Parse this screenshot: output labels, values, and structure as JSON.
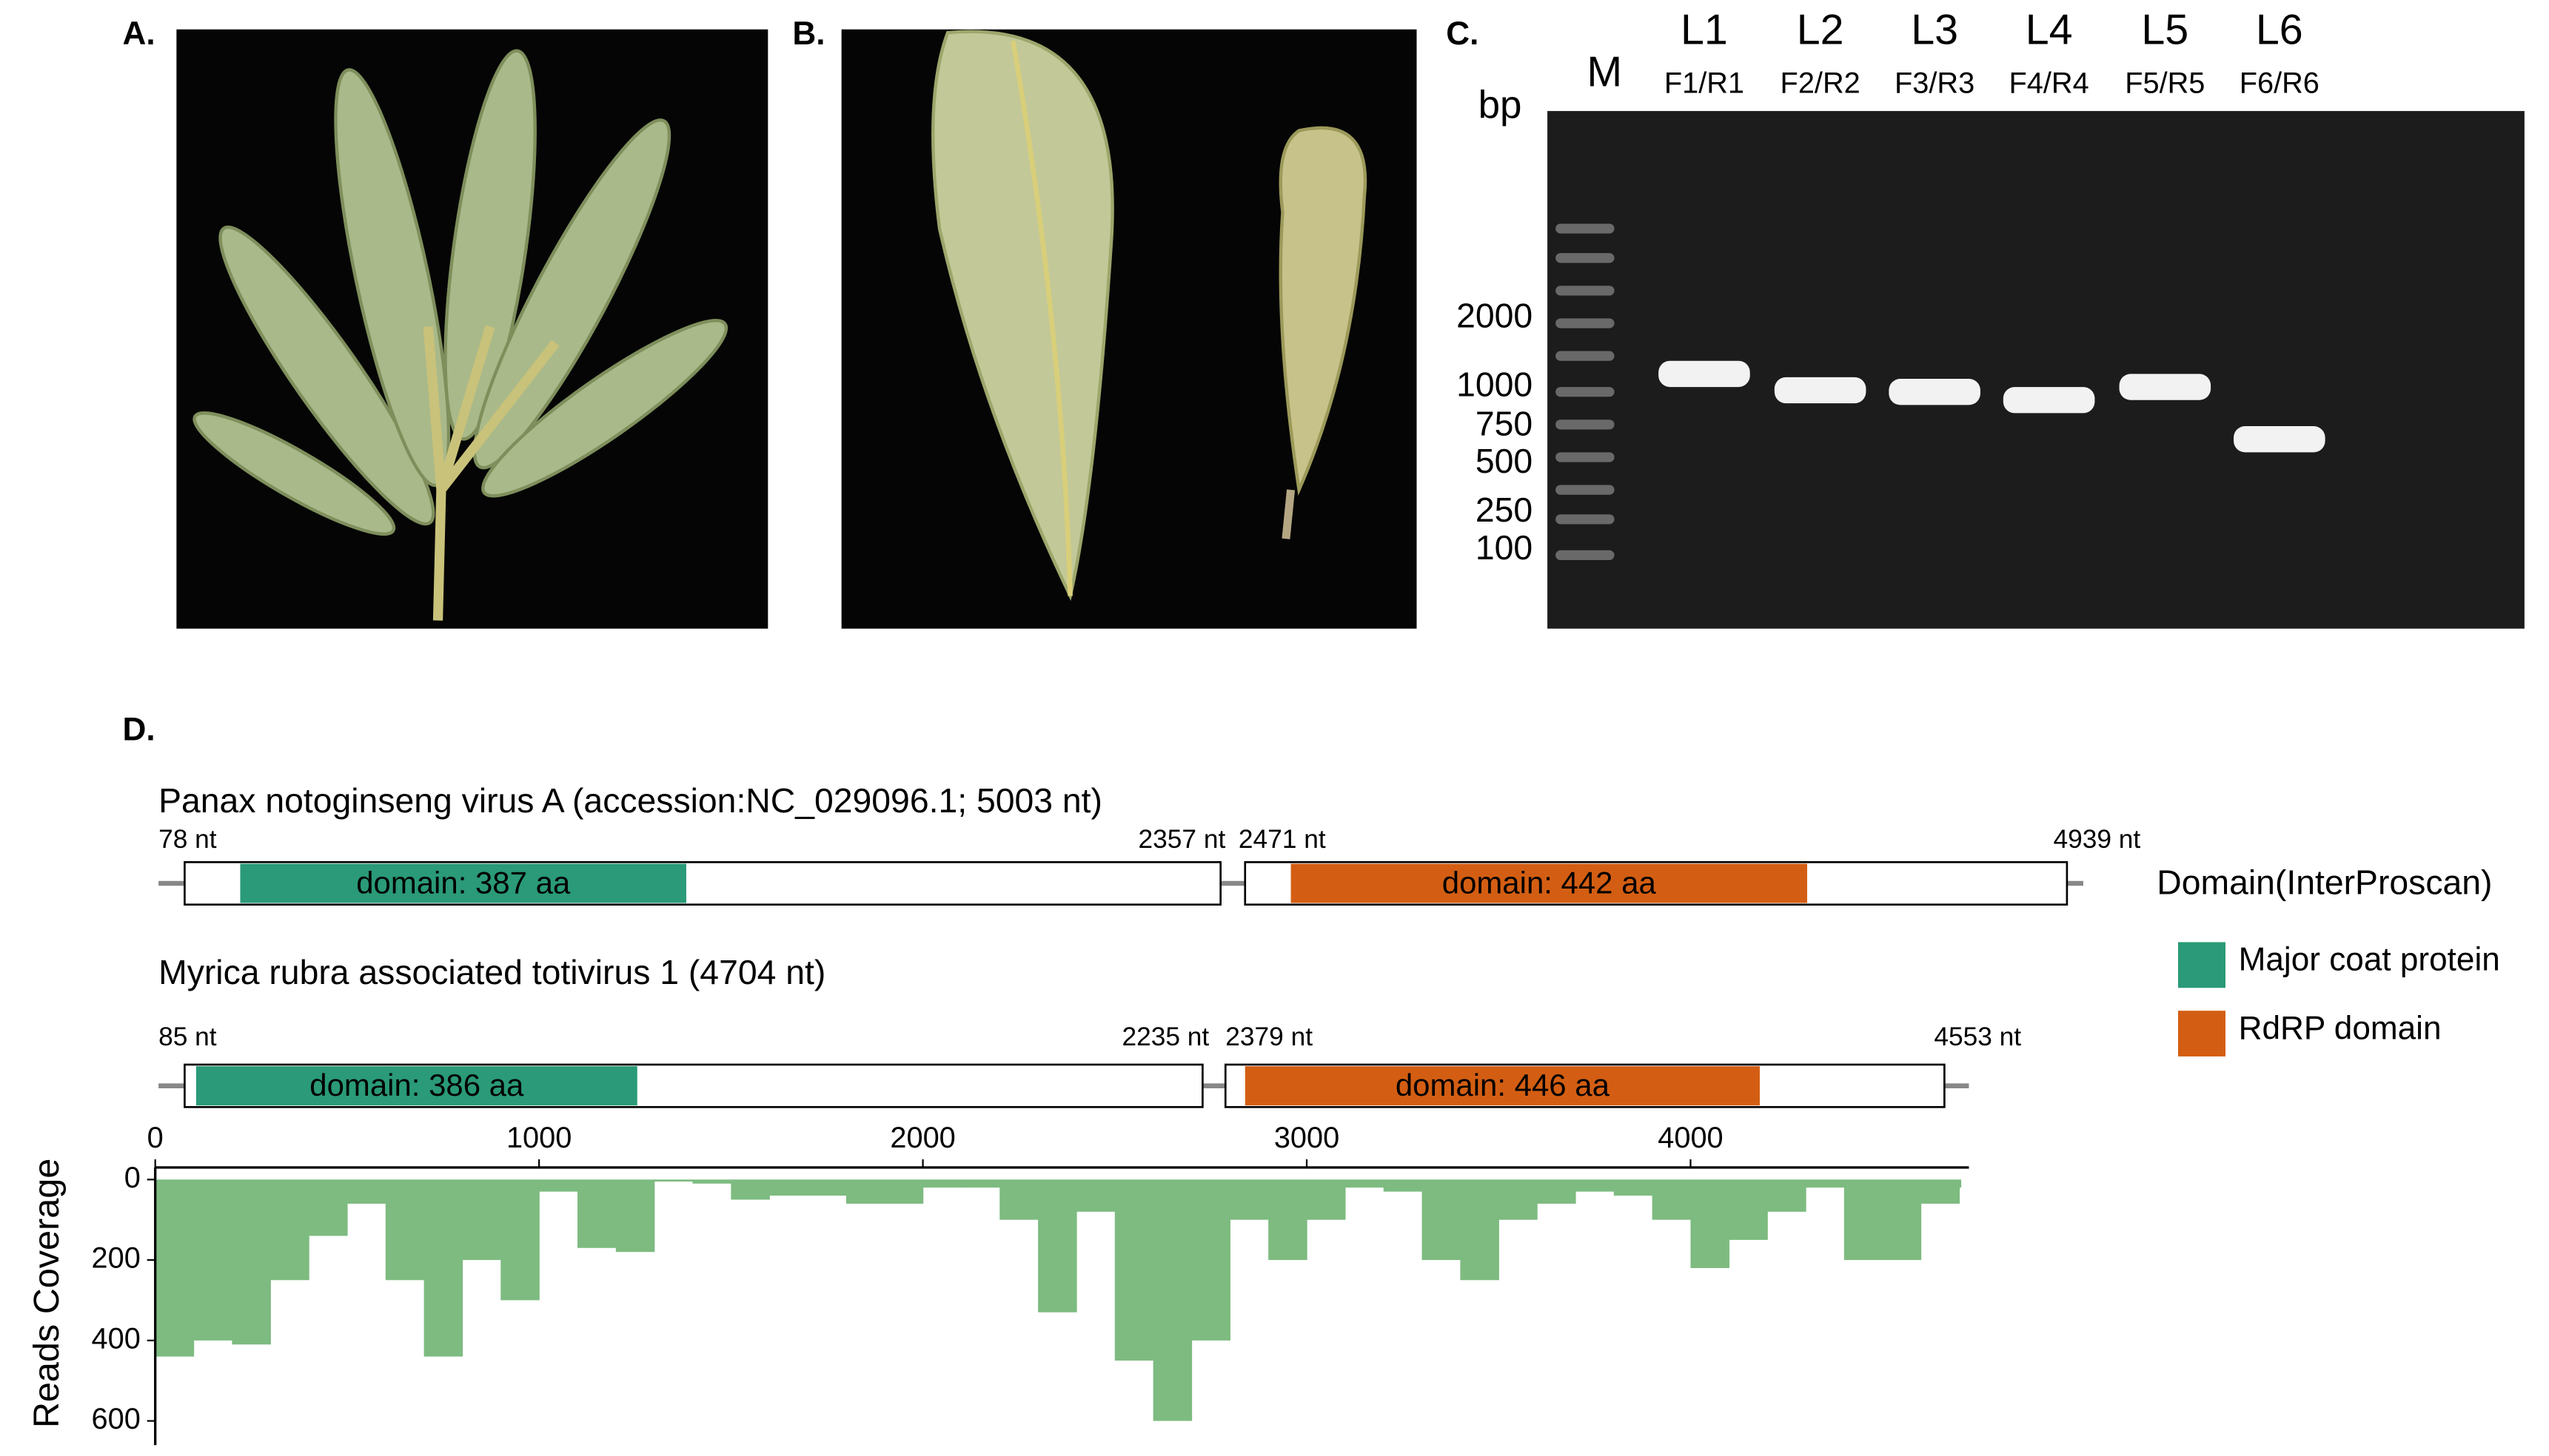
{
  "figure": {
    "panel_a": {
      "label": "A."
    },
    "panel_b": {
      "label": "B."
    },
    "panel_c": {
      "label": "C.",
      "marker": "M",
      "unit": "bp",
      "ladder": [
        2000,
        1000,
        750,
        500,
        250,
        100
      ],
      "lanes": [
        {
          "name": "L1",
          "primers": "F1/R1"
        },
        {
          "name": "L2",
          "primers": "F2/R2"
        },
        {
          "name": "L3",
          "primers": "F3/R3"
        },
        {
          "name": "L4",
          "primers": "F4/R4"
        },
        {
          "name": "L5",
          "primers": "F5/R5"
        },
        {
          "name": "L6",
          "primers": "F6/R6"
        }
      ]
    },
    "panel_d": {
      "label": "D.",
      "genomes": [
        {
          "title": "Panax notoginseng virus A (accession:NC_029096.1; 5003 nt)",
          "title_color": "#000000",
          "position_labels": [
            "78 nt",
            "2357 nt",
            "2471 nt",
            "4939 nt"
          ],
          "domains": [
            "domain: 387 aa",
            "domain: 442 aa"
          ]
        },
        {
          "title": "Myrica rubra associated totivirus 1 (4704 nt)",
          "title_color": "#d42b2b",
          "position_labels": [
            "85 nt",
            "2235 nt",
            "2379 nt",
            "4553 nt"
          ],
          "domains": [
            "domain: 386 aa",
            "domain: 446 aa"
          ]
        }
      ],
      "legend": {
        "title": "Domain(InterProscan)",
        "items": [
          {
            "name": "Major coat protein",
            "color": "#2a9a78"
          },
          {
            "name": "RdRP domain",
            "color": "#d35e13"
          }
        ]
      },
      "coverage": {
        "type": "area",
        "ylabel": "Reads Coverage",
        "color": "#7dbb80",
        "x": [
          0,
          100,
          200,
          300,
          400,
          500,
          600,
          700,
          800,
          900,
          1000,
          1100,
          1200,
          1300,
          1400,
          1500,
          1600,
          1700,
          1800,
          1900,
          2000,
          2100,
          2200,
          2300,
          2400,
          2500,
          2600,
          2700,
          2800,
          2900,
          3000,
          3100,
          3200,
          3300,
          3400,
          3500,
          3600,
          3700,
          3800,
          3900,
          4000,
          4100,
          4200,
          4300,
          4400,
          4500,
          4600,
          4700
        ],
        "values": [
          440,
          400,
          410,
          250,
          140,
          60,
          250,
          440,
          200,
          300,
          30,
          170,
          180,
          5,
          10,
          50,
          40,
          40,
          60,
          60,
          20,
          20,
          100,
          330,
          80,
          450,
          600,
          400,
          100,
          200,
          100,
          20,
          30,
          200,
          250,
          100,
          60,
          30,
          40,
          100,
          220,
          150,
          80,
          20,
          200,
          200,
          60,
          20
        ],
        "xlim": [
          0,
          4704
        ],
        "xticks": [
          0,
          1000,
          2000,
          3000,
          4000
        ],
        "ylim": [
          -30,
          660
        ],
        "yticks": [
          0,
          200,
          400,
          600
        ]
      }
    }
  }
}
